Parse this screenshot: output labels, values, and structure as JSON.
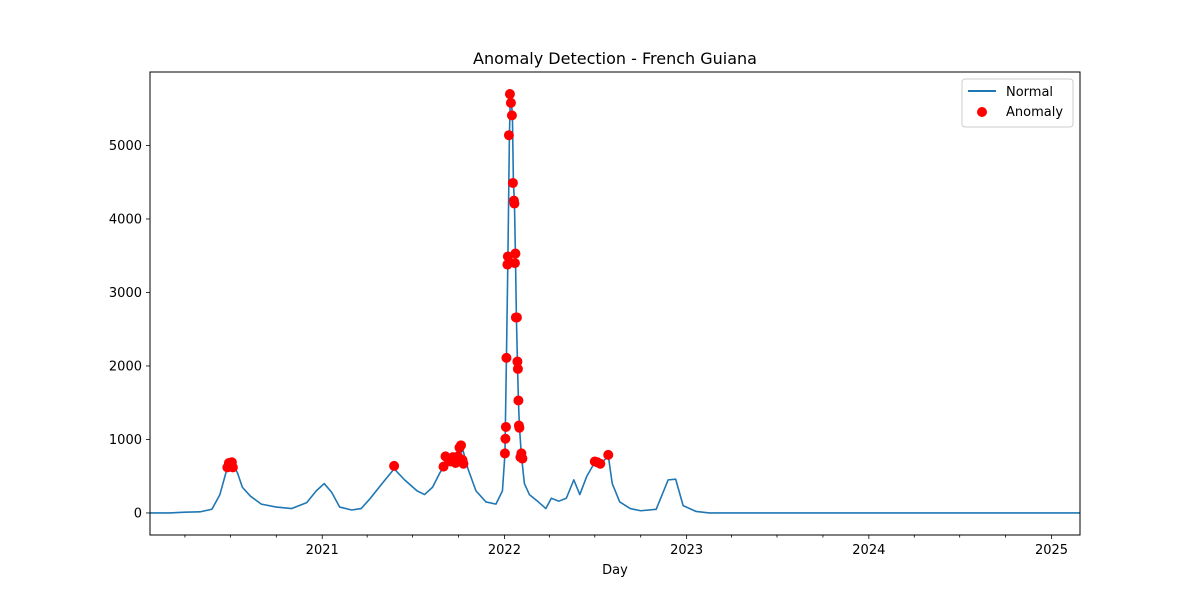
{
  "chart_data": {
    "type": "line",
    "title": "Anomaly Detection - French Guiana",
    "xlabel": "Day",
    "ylabel": "",
    "xlim": [
      "2020-01-22",
      "2025-02-27"
    ],
    "ylim": [
      -300,
      6000
    ],
    "x_ticks": [
      "2021-01-01",
      "2022-01-01",
      "2023-01-01",
      "2024-01-01",
      "2025-01-01"
    ],
    "x_tick_labels": [
      "2021",
      "2022",
      "2023",
      "2024",
      "2025"
    ],
    "y_ticks": [
      0,
      1000,
      2000,
      3000,
      4000,
      5000
    ],
    "grid": false,
    "legend": {
      "position": "top-right",
      "entries": [
        "Normal",
        "Anomaly"
      ]
    },
    "colors": {
      "normal": "#1f77b4",
      "anomaly": "#ff0000"
    },
    "series": [
      {
        "name": "Normal",
        "points": [
          [
            "2020-01-22",
            0
          ],
          [
            "2020-03-01",
            0
          ],
          [
            "2020-04-01",
            10
          ],
          [
            "2020-05-01",
            15
          ],
          [
            "2020-05-25",
            50
          ],
          [
            "2020-06-10",
            250
          ],
          [
            "2020-06-25",
            620
          ],
          [
            "2020-07-05",
            660
          ],
          [
            "2020-07-15",
            550
          ],
          [
            "2020-07-25",
            350
          ],
          [
            "2020-08-10",
            230
          ],
          [
            "2020-09-01",
            120
          ],
          [
            "2020-10-01",
            80
          ],
          [
            "2020-11-01",
            60
          ],
          [
            "2020-12-01",
            140
          ],
          [
            "2020-12-20",
            300
          ],
          [
            "2021-01-05",
            400
          ],
          [
            "2021-01-20",
            280
          ],
          [
            "2021-02-05",
            80
          ],
          [
            "2021-03-01",
            40
          ],
          [
            "2021-03-20",
            60
          ],
          [
            "2021-04-05",
            180
          ],
          [
            "2021-05-01",
            400
          ],
          [
            "2021-05-25",
            600
          ],
          [
            "2021-06-15",
            450
          ],
          [
            "2021-07-10",
            300
          ],
          [
            "2021-07-25",
            250
          ],
          [
            "2021-08-10",
            350
          ],
          [
            "2021-08-25",
            550
          ],
          [
            "2021-09-10",
            700
          ],
          [
            "2021-09-25",
            760
          ],
          [
            "2021-10-10",
            850
          ],
          [
            "2021-10-20",
            600
          ],
          [
            "2021-11-05",
            300
          ],
          [
            "2021-11-25",
            150
          ],
          [
            "2021-12-15",
            120
          ],
          [
            "2021-12-28",
            300
          ],
          [
            "2022-01-02",
            800
          ],
          [
            "2022-01-05",
            2100
          ],
          [
            "2022-01-08",
            3480
          ],
          [
            "2022-01-11",
            5140
          ],
          [
            "2022-01-13",
            5700
          ],
          [
            "2022-01-15",
            5580
          ],
          [
            "2022-01-17",
            5410
          ],
          [
            "2022-01-19",
            4490
          ],
          [
            "2022-01-21",
            4240
          ],
          [
            "2022-01-23",
            3530
          ],
          [
            "2022-01-25",
            2660
          ],
          [
            "2022-01-27",
            2060
          ],
          [
            "2022-01-29",
            1530
          ],
          [
            "2022-01-31",
            1180
          ],
          [
            "2022-02-04",
            780
          ],
          [
            "2022-02-10",
            400
          ],
          [
            "2022-02-20",
            250
          ],
          [
            "2022-03-10",
            150
          ],
          [
            "2022-03-25",
            60
          ],
          [
            "2022-04-05",
            200
          ],
          [
            "2022-04-20",
            160
          ],
          [
            "2022-05-05",
            200
          ],
          [
            "2022-05-20",
            450
          ],
          [
            "2022-06-01",
            250
          ],
          [
            "2022-06-15",
            500
          ],
          [
            "2022-07-01",
            690
          ],
          [
            "2022-07-15",
            680
          ],
          [
            "2022-07-28",
            780
          ],
          [
            "2022-08-05",
            400
          ],
          [
            "2022-08-20",
            150
          ],
          [
            "2022-09-10",
            60
          ],
          [
            "2022-10-01",
            30
          ],
          [
            "2022-11-01",
            50
          ],
          [
            "2022-11-25",
            450
          ],
          [
            "2022-12-10",
            460
          ],
          [
            "2022-12-25",
            100
          ],
          [
            "2023-01-20",
            20
          ],
          [
            "2023-02-15",
            0
          ],
          [
            "2025-02-27",
            0
          ]
        ]
      },
      {
        "name": "Anomaly",
        "points": [
          [
            "2020-06-25",
            620
          ],
          [
            "2020-06-28",
            680
          ],
          [
            "2020-07-01",
            660
          ],
          [
            "2020-07-04",
            690
          ],
          [
            "2020-07-06",
            620
          ],
          [
            "2021-05-25",
            640
          ],
          [
            "2021-09-01",
            630
          ],
          [
            "2021-09-05",
            770
          ],
          [
            "2021-09-10",
            740
          ],
          [
            "2021-09-15",
            700
          ],
          [
            "2021-09-20",
            760
          ],
          [
            "2021-09-25",
            680
          ],
          [
            "2021-09-30",
            770
          ],
          [
            "2021-10-03",
            890
          ],
          [
            "2021-10-06",
            920
          ],
          [
            "2021-10-09",
            720
          ],
          [
            "2021-10-11",
            670
          ],
          [
            "2022-01-02",
            810
          ],
          [
            "2022-01-03",
            1010
          ],
          [
            "2022-01-04",
            1170
          ],
          [
            "2022-01-05",
            2110
          ],
          [
            "2022-01-07",
            3380
          ],
          [
            "2022-01-08",
            3490
          ],
          [
            "2022-01-10",
            5140
          ],
          [
            "2022-01-12",
            5700
          ],
          [
            "2022-01-14",
            5580
          ],
          [
            "2022-01-16",
            5410
          ],
          [
            "2022-01-18",
            4490
          ],
          [
            "2022-01-20",
            4250
          ],
          [
            "2022-01-21",
            4210
          ],
          [
            "2022-01-22",
            3400
          ],
          [
            "2022-01-23",
            3530
          ],
          [
            "2022-01-24",
            2660
          ],
          [
            "2022-01-26",
            2660
          ],
          [
            "2022-01-27",
            2060
          ],
          [
            "2022-01-28",
            1960
          ],
          [
            "2022-01-29",
            1530
          ],
          [
            "2022-01-30",
            1190
          ],
          [
            "2022-01-31",
            1160
          ],
          [
            "2022-02-02",
            760
          ],
          [
            "2022-02-04",
            810
          ],
          [
            "2022-02-06",
            740
          ],
          [
            "2022-07-01",
            700
          ],
          [
            "2022-07-06",
            690
          ],
          [
            "2022-07-12",
            670
          ],
          [
            "2022-07-28",
            790
          ]
        ]
      }
    ]
  }
}
